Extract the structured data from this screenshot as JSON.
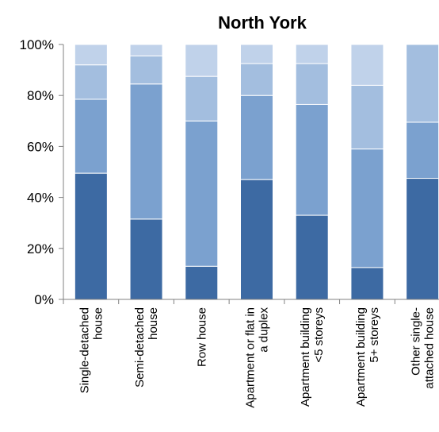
{
  "chart_data": {
    "type": "bar",
    "stacked": true,
    "percent": true,
    "title": "North York",
    "xlabel": "",
    "ylabel": "",
    "ylim": [
      0,
      100
    ],
    "yticks": [
      "0%",
      "20%",
      "40%",
      "60%",
      "80%",
      "100%"
    ],
    "grid": false,
    "legend": "none",
    "categories": [
      [
        "Single-detached",
        "house"
      ],
      [
        "Semi-detached",
        "house"
      ],
      [
        "Row house"
      ],
      [
        "Apartment or flat in",
        "a duplex"
      ],
      [
        "Apartment building",
        "<5 storeys"
      ],
      [
        "Apartment building",
        "5+ storeys"
      ],
      [
        "Other single-",
        "attached house"
      ]
    ],
    "series": [
      {
        "color": "#3d6aa3",
        "values": [
          49.5,
          31.5,
          13,
          47,
          33,
          12.5,
          47.5
        ]
      },
      {
        "color": "#7ba1cf",
        "values": [
          29,
          53,
          57,
          33,
          43.5,
          46.5,
          22
        ]
      },
      {
        "color": "#a3bedf",
        "values": [
          13.5,
          11,
          17.5,
          12.5,
          16,
          25,
          30.5
        ]
      },
      {
        "color": "#c0d2ea",
        "values": [
          8,
          4.5,
          12.5,
          7.5,
          7.5,
          16,
          0
        ]
      }
    ]
  }
}
